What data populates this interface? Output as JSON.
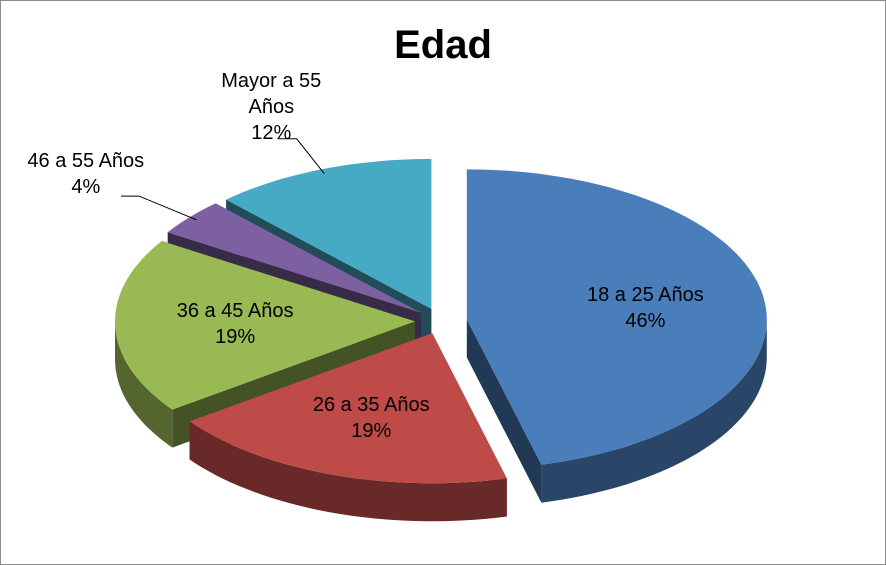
{
  "chart_data": {
    "type": "pie",
    "title": "Edad",
    "categories": [
      "18 a 25 Años",
      "26 a 35 Años",
      "36 a 45 Años",
      "46 a 55 Años",
      "Mayor a 55 Años"
    ],
    "values": [
      46,
      19,
      19,
      4,
      12
    ],
    "value_labels": [
      "46%",
      "19%",
      "19%",
      "4%",
      "12%"
    ],
    "colors": [
      "#4a7ebb",
      "#be4b48",
      "#98b954",
      "#7d60a0",
      "#46aac5"
    ],
    "three_d": true,
    "exploded": true
  }
}
